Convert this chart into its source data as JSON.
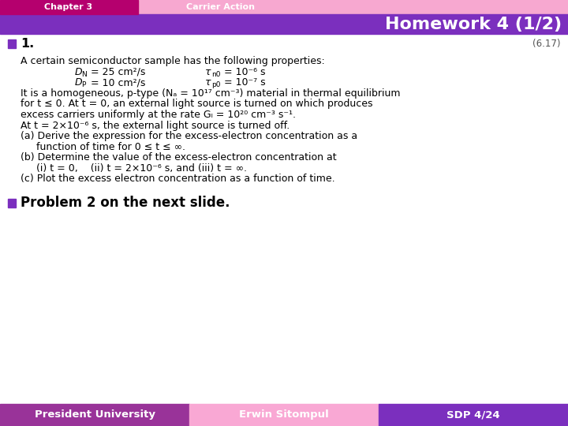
{
  "header_left_text": "Chapter 3",
  "header_right_text": "Carrier Action",
  "header_left_color": "#b5006e",
  "header_right_color": "#f7a8d0",
  "title_text": "Homework 4 (1/2)",
  "title_bg_color": "#7b2fbe",
  "title_text_color": "#ffffff",
  "body_bg_color": "#ffffff",
  "bullet_color": "#7b2fbe",
  "footer_left_text": "President University",
  "footer_left_color": "#993399",
  "footer_mid_text": "Erwin Sitompul",
  "footer_mid_color": "#f9a8d4",
  "footer_right_text": "SDP 4/24",
  "footer_right_color": "#7b2fbe",
  "footer_text_color": "#ffffff",
  "problem_number": "1.",
  "problem_ref": "(6.17)",
  "problem2_text": "Problem 2 on the next slide."
}
